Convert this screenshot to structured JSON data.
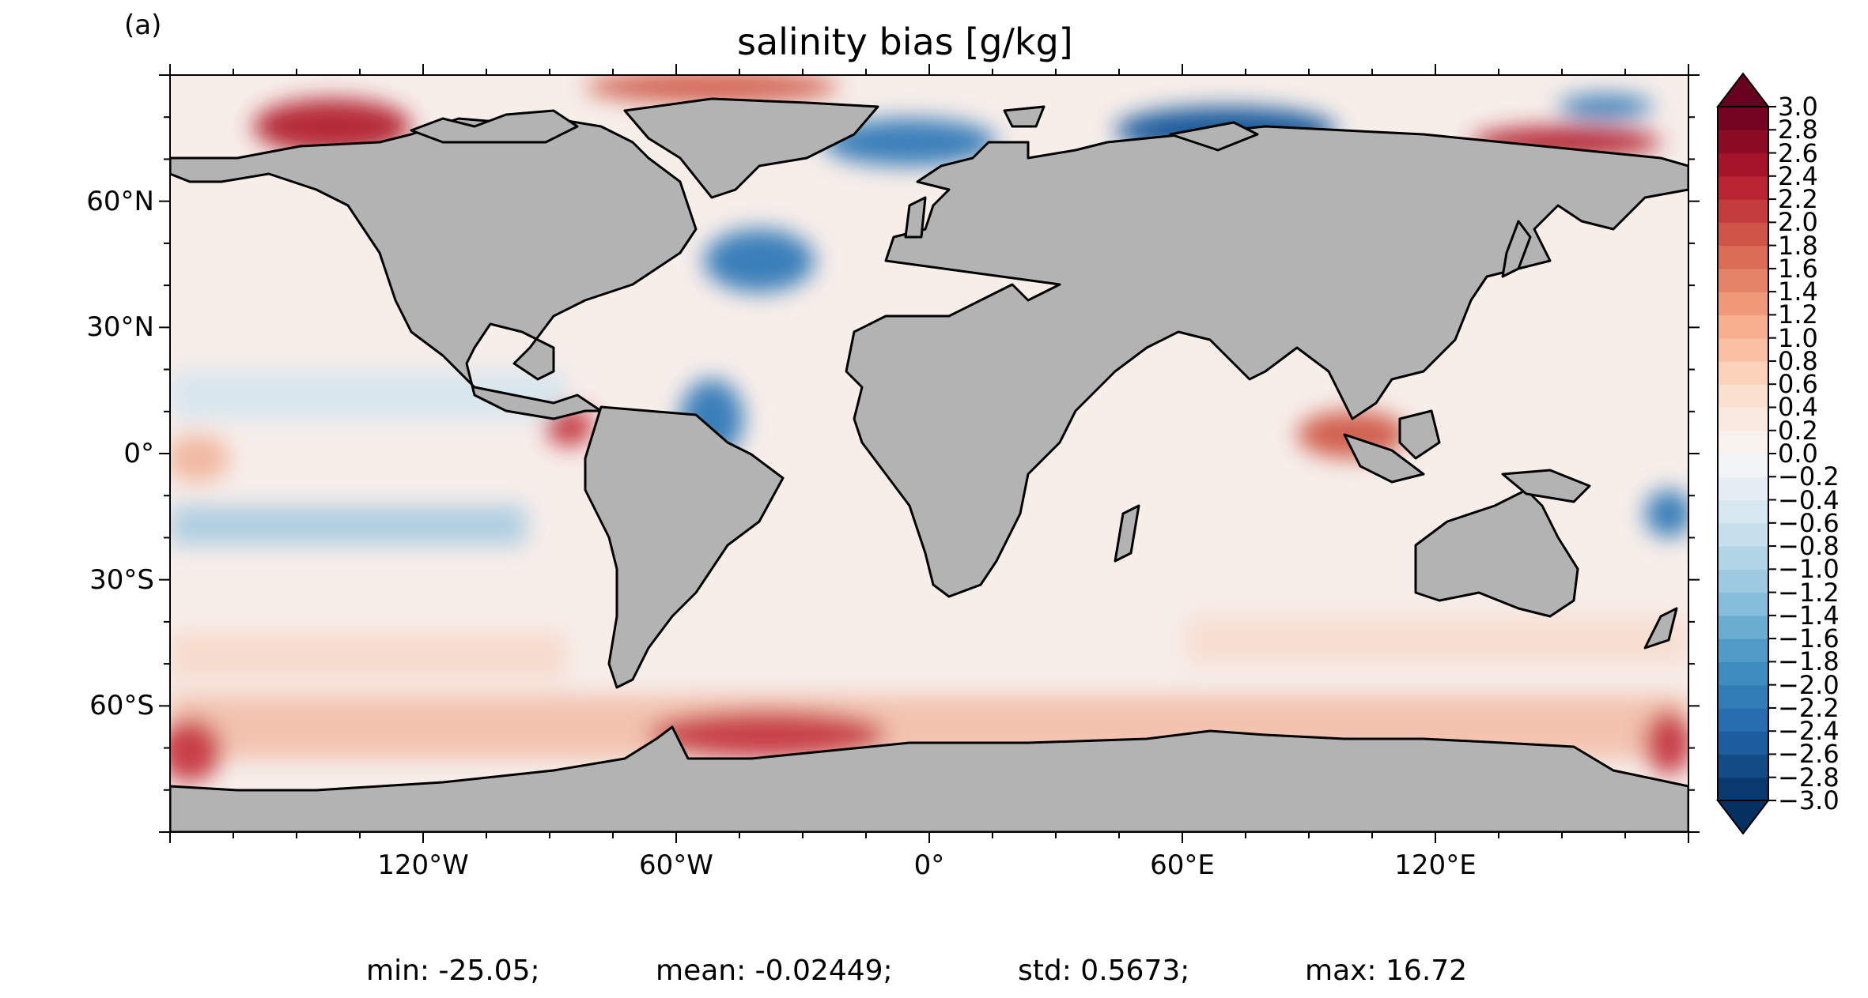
{
  "panel_label": "(a)",
  "title": "salinity bias [g/kg]",
  "map": {
    "projection": "PlateCarree",
    "lon_range": [
      -180,
      180
    ],
    "lat_range": [
      -90,
      90
    ],
    "land_color": "#b3b3b3",
    "coastline_color": "#000000",
    "lat_ticks": [
      {
        "value": 60,
        "label": "60°N"
      },
      {
        "value": 30,
        "label": "30°N"
      },
      {
        "value": 0,
        "label": "0°"
      },
      {
        "value": -30,
        "label": "30°S"
      },
      {
        "value": -60,
        "label": "60°S"
      }
    ],
    "lon_ticks": [
      {
        "value": -120,
        "label": "120°W"
      },
      {
        "value": -60,
        "label": "60°W"
      },
      {
        "value": 0,
        "label": "0°"
      },
      {
        "value": 60,
        "label": "60°E"
      },
      {
        "value": 120,
        "label": "120°E"
      }
    ]
  },
  "colorbar": {
    "colormap": "RdBu_r",
    "min": -3.0,
    "max": 3.0,
    "step": 0.2,
    "extend": "both",
    "labels": [
      "3.0",
      "2.8",
      "2.6",
      "2.4",
      "2.2",
      "2.0",
      "1.8",
      "1.6",
      "1.4",
      "1.2",
      "1.0",
      "0.8",
      "0.6",
      "0.4",
      "0.2",
      "0.0",
      "−0.2",
      "−0.4",
      "−0.6",
      "−0.8",
      "−1.0",
      "−1.2",
      "−1.4",
      "−1.6",
      "−1.8",
      "−2.0",
      "−2.2",
      "−2.4",
      "−2.6",
      "−2.8",
      "−3.0"
    ]
  },
  "stats": {
    "min": "min: -25.05;",
    "mean": "mean: -0.02449;",
    "std": "std: 0.5673;",
    "max": "max: 16.72"
  }
}
